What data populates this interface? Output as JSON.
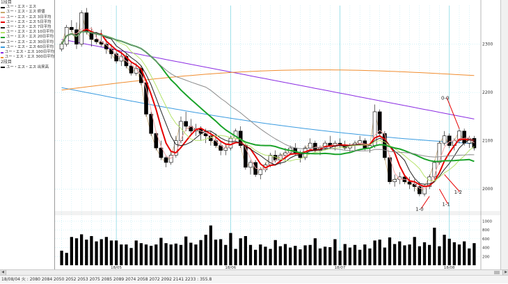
{
  "legend": {
    "section1": "1段目",
    "items": [
      {
        "label": "ユー・エス・エス",
        "color": "#000000"
      },
      {
        "label": "ユー・エス・エス 終値",
        "color": "#c9a66b"
      },
      {
        "label": "ユー・エス・エス 3日平均",
        "color": "#f4a6a6"
      },
      {
        "label": "ユー・エス・エス 5日平均",
        "color": "#e60000"
      },
      {
        "label": "ユー・エス・エス 7日平均",
        "color": "#222222"
      },
      {
        "label": "ユー・エス・エス 10日平均",
        "color": "#b5e36b"
      },
      {
        "label": "ユー・エス・エス 20日平均",
        "color": "#1aa32a"
      },
      {
        "label": "ユー・エス・エス 30日平均",
        "color": "#8c8c8c"
      },
      {
        "label": "ユー・エス・エス 60日平均",
        "color": "#3a9be0"
      },
      {
        "label": "ユー・エス・エス 100日平均",
        "color": "#8a2be2"
      },
      {
        "label": "ユー・エス・エス 300日平均",
        "color": "#f08c2e"
      }
    ],
    "section2": "2段目",
    "items2": [
      {
        "label": "ユー・エス・エス 出来高",
        "color": "#000000"
      }
    ]
  },
  "status_bar": "18/08/04 火 : 2080 2084 2050 2052 2053 2075 2085 2089 2074 2058 2072 2092 2141 2233 : 355.8",
  "chart_data": {
    "type": "candlestick",
    "price_axis": {
      "ticks": [
        2000,
        2100,
        2200,
        2300
      ]
    },
    "volume_axis": {
      "ticks": [
        200,
        400,
        600,
        800,
        1000
      ]
    },
    "x_ticks": [
      {
        "label": "18/05",
        "index": 11
      },
      {
        "label": "18/06",
        "index": 34
      },
      {
        "label": "18/07",
        "index": 56
      },
      {
        "label": "18/08",
        "index": 78
      }
    ],
    "candles": [
      [
        2290,
        2305,
        2285,
        2300
      ],
      [
        2300,
        2340,
        2295,
        2335
      ],
      [
        2335,
        2350,
        2325,
        2330
      ],
      [
        2330,
        2345,
        2290,
        2300
      ],
      [
        2300,
        2370,
        2295,
        2365
      ],
      [
        2365,
        2375,
        2320,
        2325
      ],
      [
        2325,
        2335,
        2295,
        2310
      ],
      [
        2310,
        2325,
        2300,
        2305
      ],
      [
        2305,
        2330,
        2295,
        2300
      ],
      [
        2300,
        2310,
        2280,
        2290
      ],
      [
        2290,
        2300,
        2270,
        2280
      ],
      [
        2280,
        2285,
        2260,
        2265
      ],
      [
        2265,
        2285,
        2255,
        2275
      ],
      [
        2275,
        2280,
        2250,
        2255
      ],
      [
        2255,
        2265,
        2235,
        2240
      ],
      [
        2240,
        2260,
        2235,
        2250
      ],
      [
        2250,
        2255,
        2215,
        2220
      ],
      [
        2220,
        2225,
        2150,
        2155
      ],
      [
        2155,
        2160,
        2110,
        2115
      ],
      [
        2115,
        2120,
        2080,
        2085
      ],
      [
        2085,
        2100,
        2060,
        2065
      ],
      [
        2065,
        2070,
        2045,
        2055
      ],
      [
        2055,
        2080,
        2050,
        2070
      ],
      [
        2070,
        2110,
        2065,
        2100
      ],
      [
        2100,
        2150,
        2095,
        2140
      ],
      [
        2140,
        2160,
        2120,
        2130
      ],
      [
        2130,
        2145,
        2115,
        2120
      ],
      [
        2120,
        2135,
        2110,
        2125
      ],
      [
        2125,
        2130,
        2100,
        2115
      ],
      [
        2115,
        2125,
        2095,
        2110
      ],
      [
        2110,
        2120,
        2090,
        2100
      ],
      [
        2100,
        2115,
        2085,
        2090
      ],
      [
        2090,
        2100,
        2070,
        2080
      ],
      [
        2080,
        2095,
        2070,
        2085
      ],
      [
        2085,
        2110,
        2080,
        2105
      ],
      [
        2105,
        2125,
        2100,
        2120
      ],
      [
        2120,
        2130,
        2085,
        2090
      ],
      [
        2090,
        2095,
        2040,
        2045
      ],
      [
        2045,
        2060,
        2030,
        2055
      ],
      [
        2055,
        2060,
        2025,
        2030
      ],
      [
        2030,
        2045,
        2020,
        2040
      ],
      [
        2040,
        2055,
        2035,
        2050
      ],
      [
        2050,
        2075,
        2045,
        2070
      ],
      [
        2070,
        2080,
        2055,
        2060
      ],
      [
        2060,
        2075,
        2050,
        2070
      ],
      [
        2070,
        2085,
        2060,
        2075
      ],
      [
        2075,
        2090,
        2070,
        2085
      ],
      [
        2085,
        2095,
        2070,
        2075
      ],
      [
        2075,
        2080,
        2055,
        2065
      ],
      [
        2065,
        2090,
        2060,
        2085
      ],
      [
        2085,
        2105,
        2080,
        2095
      ],
      [
        2095,
        2100,
        2075,
        2080
      ],
      [
        2080,
        2090,
        2070,
        2085
      ],
      [
        2085,
        2100,
        2080,
        2095
      ],
      [
        2095,
        2110,
        2085,
        2090
      ],
      [
        2090,
        2100,
        2080,
        2095
      ],
      [
        2095,
        2105,
        2085,
        2090
      ],
      [
        2090,
        2100,
        2080,
        2085
      ],
      [
        2085,
        2095,
        2075,
        2090
      ],
      [
        2090,
        2100,
        2080,
        2095
      ],
      [
        2095,
        2110,
        2090,
        2100
      ],
      [
        2100,
        2105,
        2080,
        2085
      ],
      [
        2085,
        2095,
        2075,
        2090
      ],
      [
        2090,
        2175,
        2085,
        2160
      ],
      [
        2160,
        2165,
        2110,
        2115
      ],
      [
        2115,
        2120,
        2060,
        2065
      ],
      [
        2065,
        2070,
        2010,
        2015
      ],
      [
        2015,
        2030,
        2005,
        2020
      ],
      [
        2020,
        2035,
        2010,
        2025
      ],
      [
        2025,
        2030,
        2010,
        2015
      ],
      [
        2015,
        2025,
        2000,
        2010
      ],
      [
        2010,
        2020,
        1995,
        2005
      ],
      [
        2005,
        2015,
        1985,
        1990
      ],
      [
        1990,
        2010,
        1985,
        2005
      ],
      [
        2005,
        2030,
        2000,
        2025
      ],
      [
        2025,
        2060,
        2020,
        2055
      ],
      [
        2055,
        2100,
        2050,
        2095
      ],
      [
        2095,
        2120,
        2090,
        2110
      ],
      [
        2110,
        2115,
        2085,
        2090
      ],
      [
        2090,
        2105,
        2080,
        2100
      ],
      [
        2100,
        2125,
        2095,
        2120
      ],
      [
        2120,
        2125,
        2090,
        2095
      ],
      [
        2095,
        2110,
        2085,
        2105
      ],
      [
        2105,
        2110,
        2080,
        2085
      ]
    ],
    "volume": [
      330,
      280,
      640,
      610,
      700,
      580,
      660,
      540,
      590,
      640,
      560,
      560,
      470,
      470,
      390,
      560,
      500,
      470,
      440,
      470,
      620,
      500,
      470,
      490,
      460,
      650,
      510,
      470,
      570,
      690,
      900,
      580,
      590,
      460,
      730,
      370,
      610,
      660,
      460,
      350,
      470,
      420,
      370,
      570,
      430,
      480,
      400,
      440,
      360,
      450,
      460,
      610,
      380,
      420,
      410,
      590,
      330,
      480,
      400,
      460,
      350,
      470,
      380,
      560,
      580,
      400,
      630,
      480,
      540,
      450,
      470,
      640,
      430,
      520,
      460,
      850,
      430,
      690,
      600,
      520,
      470,
      540,
      380,
      500
    ],
    "series": [
      {
        "name": "ユー・エス・エス 3日平均",
        "period": 3,
        "color": "#f4a6a6"
      },
      {
        "name": "ユー・エス・エス 5日平均",
        "period": 5,
        "color": "#e60000"
      },
      {
        "name": "ユー・エス・エス 7日平均",
        "period": 7,
        "color": "#222222"
      },
      {
        "name": "ユー・エス・エス 10日平均",
        "period": 10,
        "color": "#b5e36b"
      },
      {
        "name": "ユー・エス・エス 20日平均",
        "period": 20,
        "color": "#1aa32a"
      },
      {
        "name": "ユー・エス・エス 30日平均",
        "period": 30,
        "color": "#8c8c8c"
      },
      {
        "name": "ユー・エス・エス 60日平均",
        "period": 60,
        "color": "#3a9be0",
        "start": 2210,
        "end": 2100
      },
      {
        "name": "ユー・エス・エス 100日平均",
        "period": 100,
        "color": "#8a2be2",
        "start": 2310,
        "end": 2145
      },
      {
        "name": "ユー・エス・エス 300日平均",
        "period": 300,
        "color": "#f08c2e",
        "start": 2205,
        "end": 2235
      }
    ],
    "annotations": [
      {
        "label": "0-0",
        "index": 80,
        "price": 2125
      },
      {
        "label": "1-2",
        "index": 77,
        "price": 2030
      },
      {
        "label": "1-1",
        "index": 76,
        "price": 2000
      },
      {
        "label": "1-0",
        "index": 74,
        "price": 1985
      }
    ]
  }
}
